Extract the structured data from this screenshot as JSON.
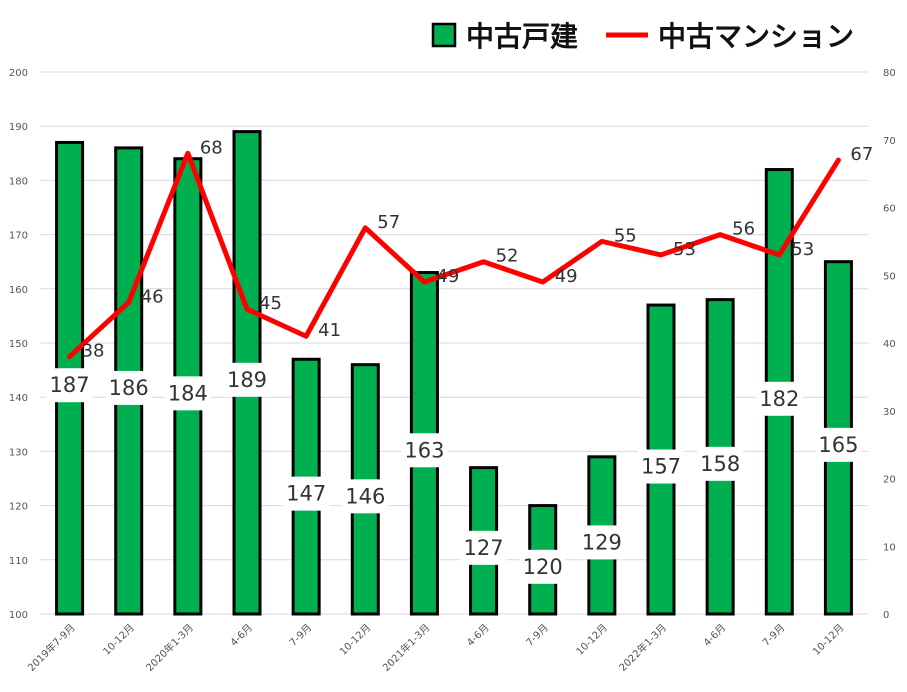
{
  "chart_data": {
    "type": "bar",
    "categories": [
      "2019年7-9月",
      "10-12月",
      "2020年1-3月",
      "4-6月",
      "7-9月",
      "10-12月",
      "2021年1-3月",
      "4-6月",
      "7-9月",
      "10-12月",
      "2022年1-3月",
      "4-6月",
      "7-9月",
      "10-12月"
    ],
    "series": [
      {
        "name": "中古戸建",
        "type": "bar",
        "axis": "left",
        "color": "#00b050",
        "values": [
          187,
          186,
          184,
          189,
          147,
          146,
          163,
          127,
          120,
          129,
          157,
          158,
          182,
          165
        ]
      },
      {
        "name": "中古マンション",
        "type": "line",
        "axis": "right",
        "color": "#ff0000",
        "values": [
          38,
          46,
          68,
          45,
          41,
          57,
          49,
          52,
          49,
          55,
          53,
          56,
          53,
          67
        ]
      }
    ],
    "ylim_left": [
      100,
      200
    ],
    "yticks_left": [
      "100",
      "110",
      "120",
      "130",
      "140",
      "150",
      "160",
      "170",
      "180",
      "190",
      "200"
    ],
    "ylim_right": [
      0,
      80
    ],
    "yticks_right": [
      "0",
      "10",
      "20",
      "30",
      "40",
      "50",
      "60",
      "70",
      "80"
    ],
    "grid": true,
    "legend_position": "top-right"
  },
  "colors": {
    "bar_fill": "#00b050",
    "bar_stroke": "#000000",
    "line": "#ff0000",
    "grid": "#d9d9d9"
  }
}
